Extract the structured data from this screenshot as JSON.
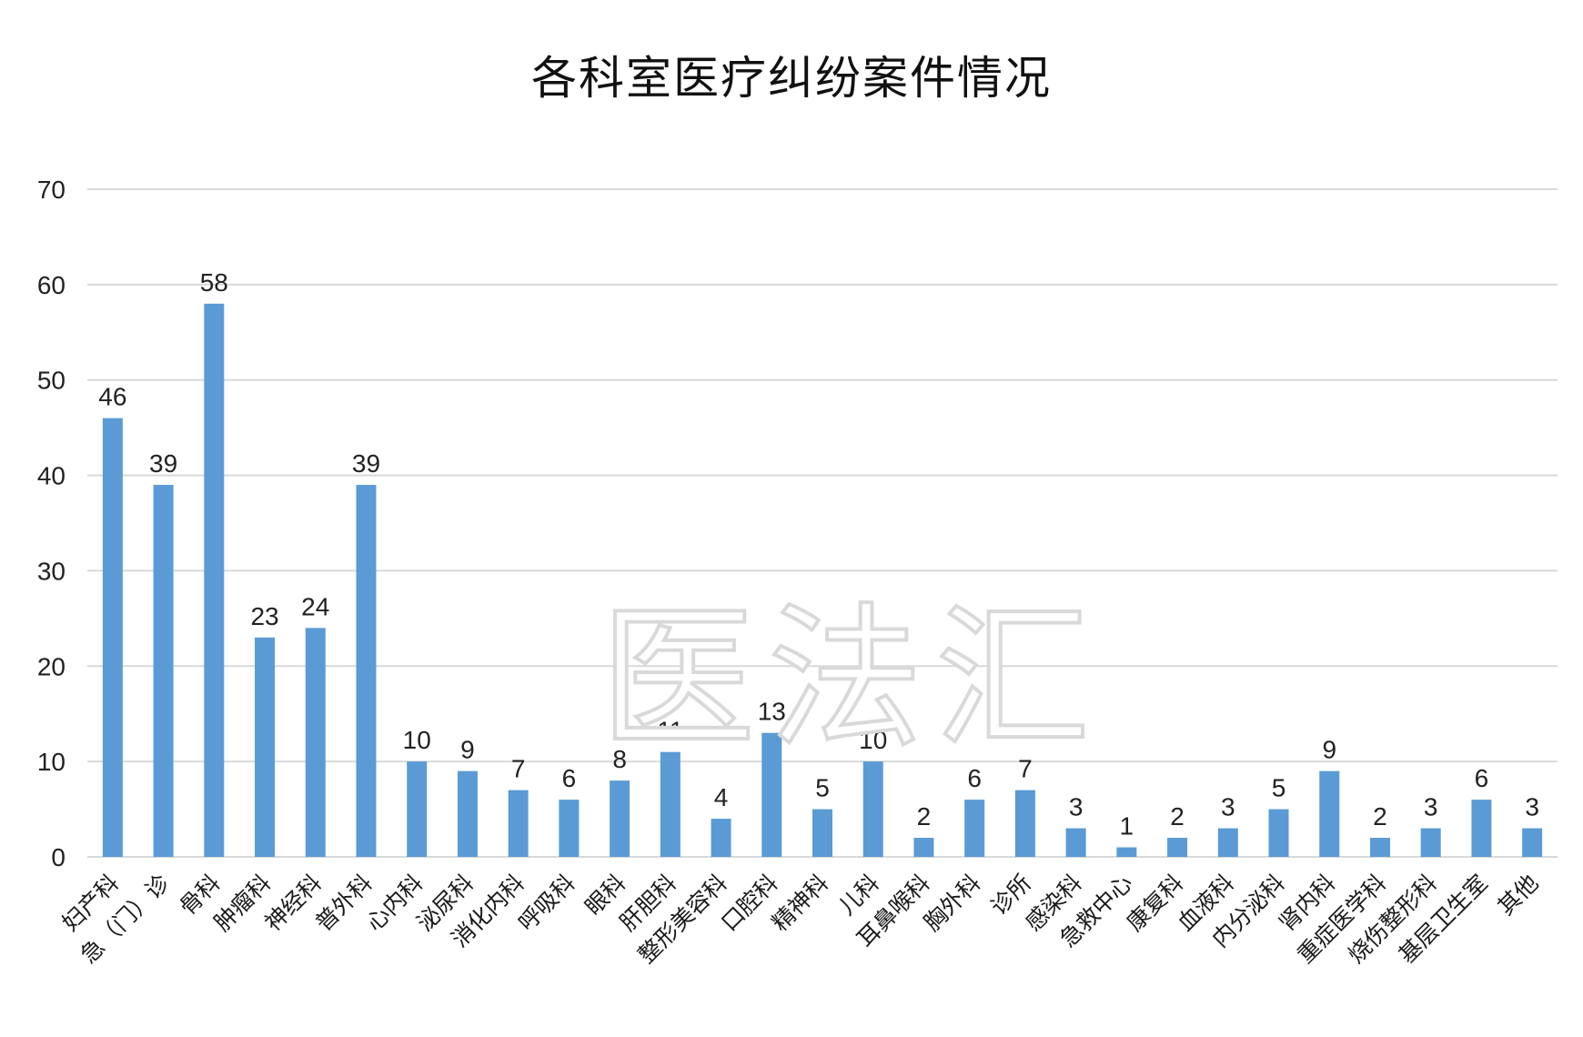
{
  "chart_data": {
    "type": "bar",
    "title": "各科室医疗纠纷案件情况",
    "ylim": [
      0,
      70
    ],
    "y_ticks": [
      0,
      10,
      20,
      30,
      40,
      50,
      60,
      70
    ],
    "grid": true,
    "categories": [
      "妇产科",
      "急（门）诊",
      "骨科",
      "肿瘤科",
      "神经科",
      "普外科",
      "心内科",
      "泌尿科",
      "消化内科",
      "呼吸科",
      "眼科",
      "肝胆科",
      "整形美容科",
      "口腔科",
      "精神科",
      "儿科",
      "耳鼻喉科",
      "胸外科",
      "诊所",
      "感染科",
      "急救中心",
      "康复科",
      "血液科",
      "内分泌科",
      "肾内科",
      "重症医学科",
      "烧伤整形科",
      "基层卫生室",
      "其他"
    ],
    "values": [
      46,
      39,
      58,
      23,
      24,
      39,
      10,
      9,
      7,
      6,
      8,
      11,
      4,
      13,
      5,
      10,
      2,
      6,
      7,
      3,
      1,
      2,
      3,
      5,
      9,
      2,
      3,
      6,
      3
    ],
    "bar_color": "#5b9bd5"
  },
  "watermark": "医法汇"
}
